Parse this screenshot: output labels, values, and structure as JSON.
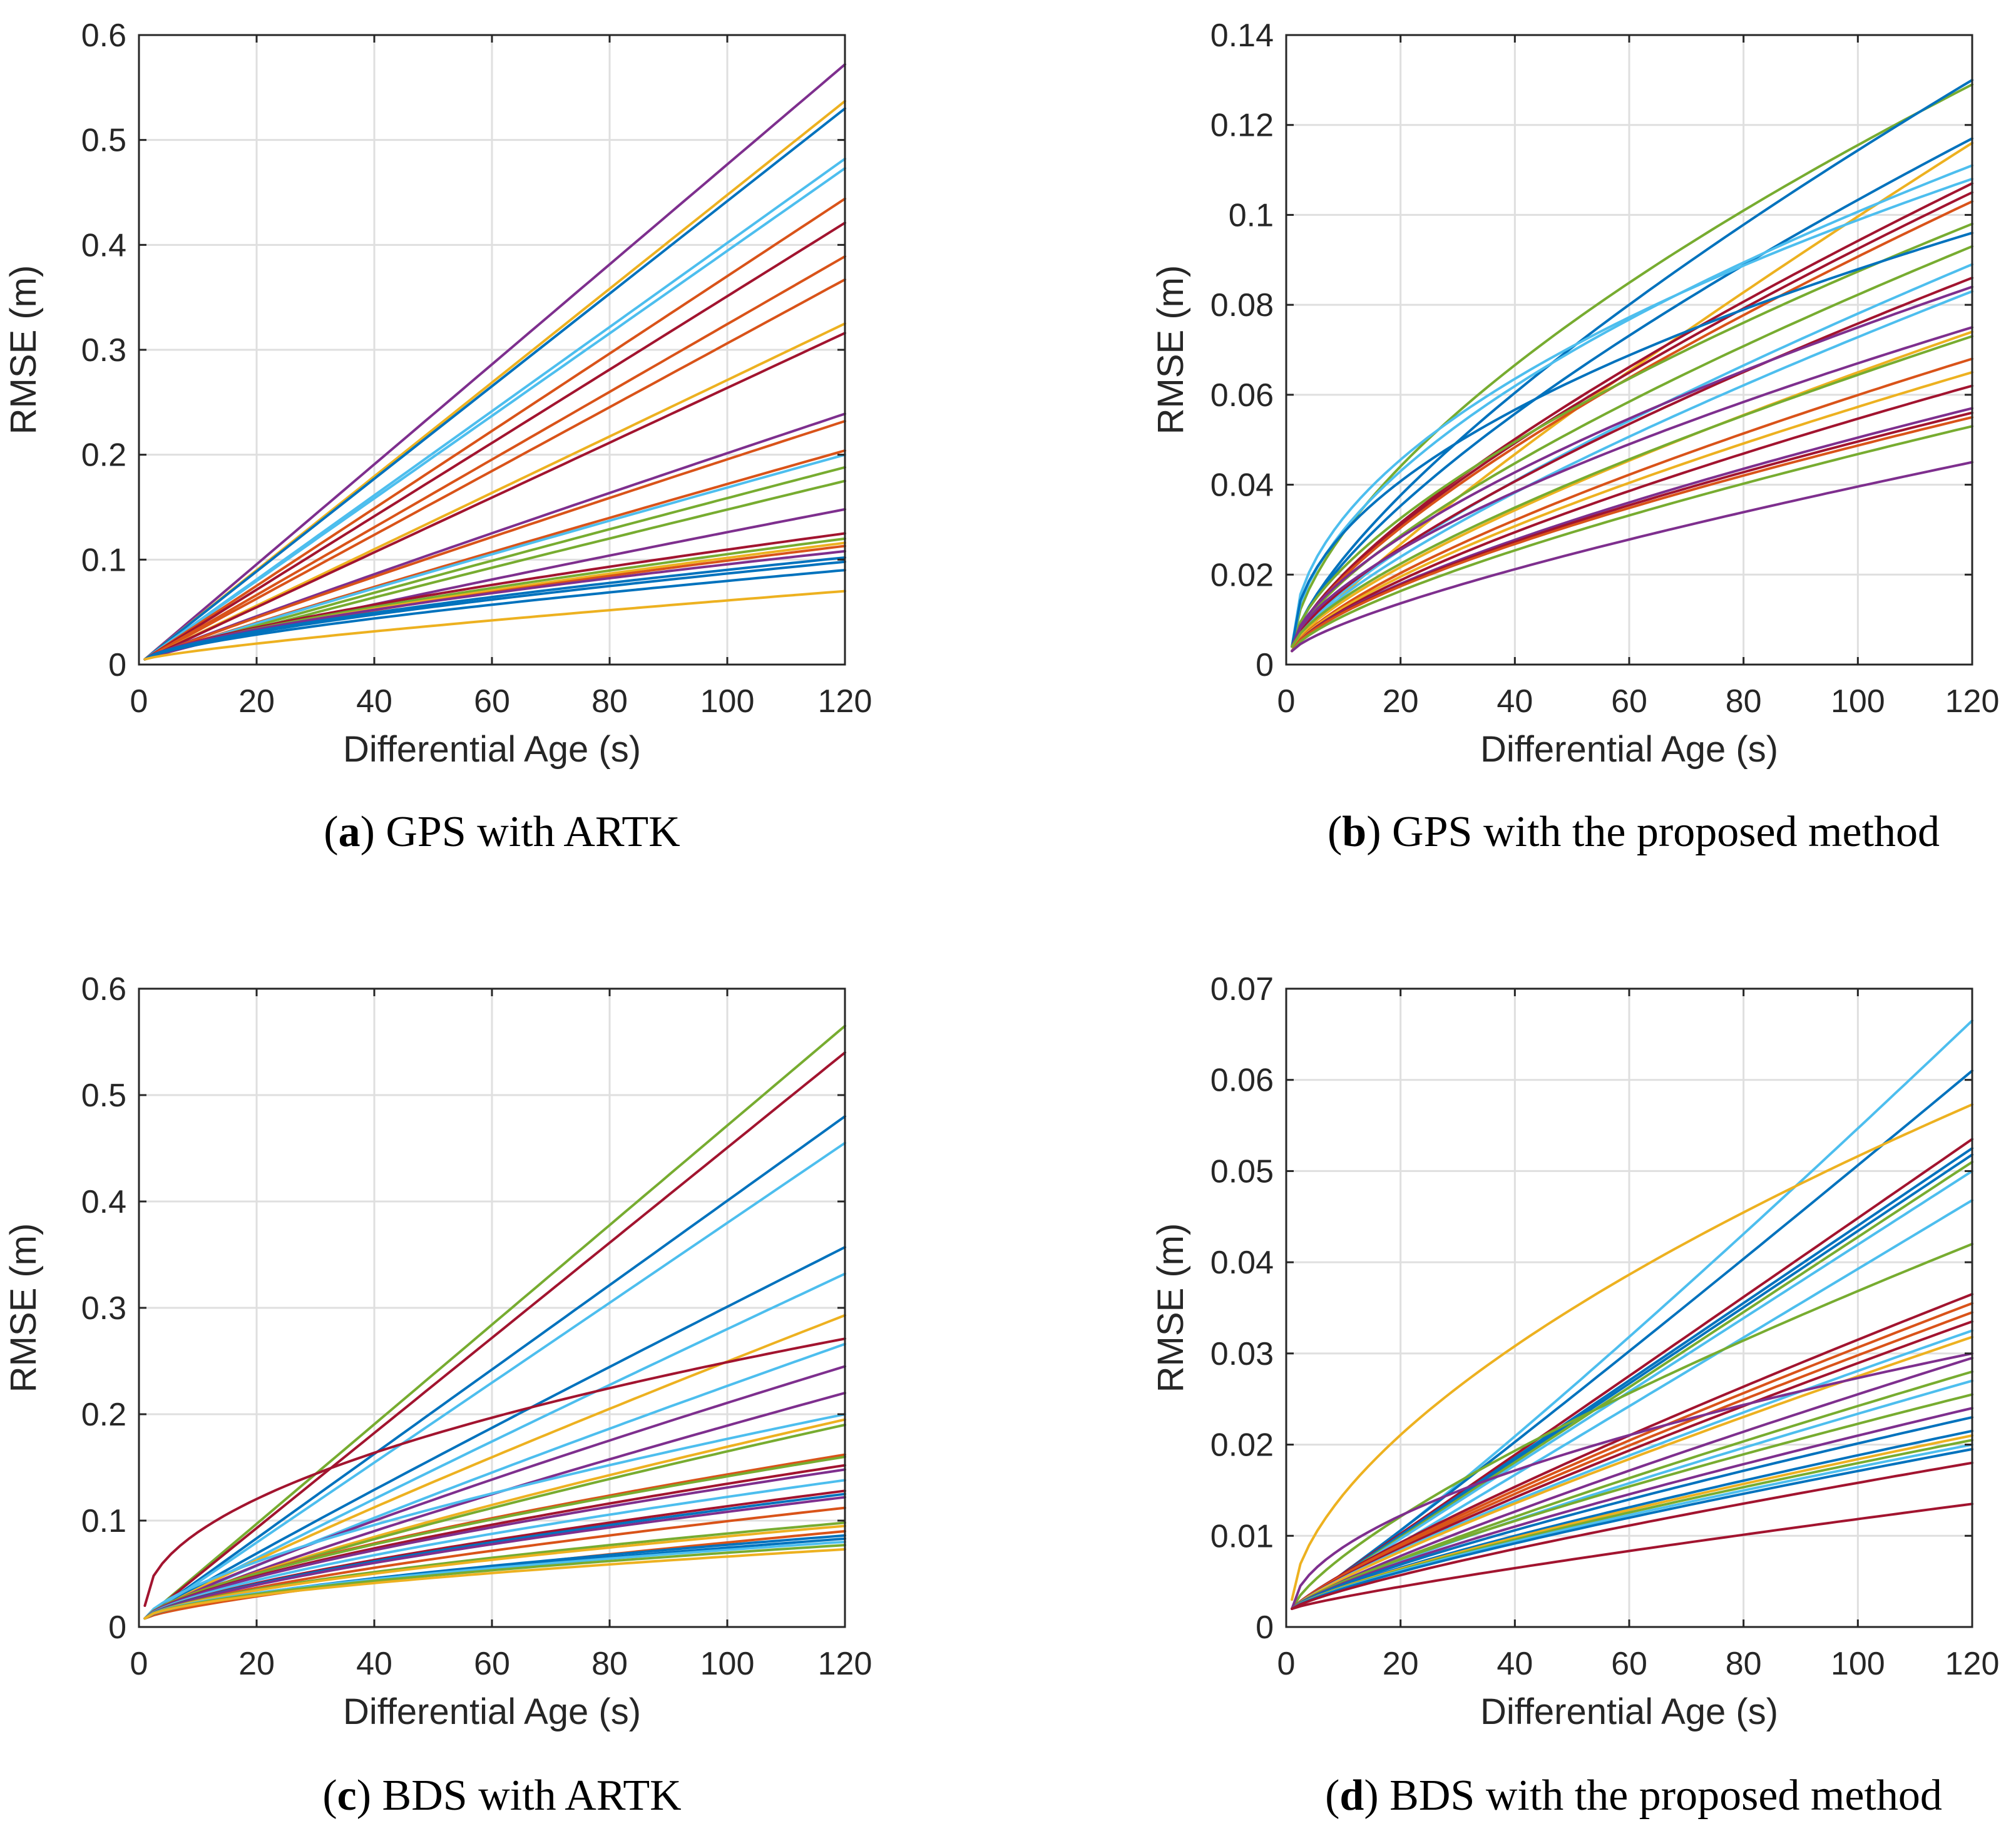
{
  "figure": {
    "series_colors": [
      "#0072BD",
      "#D95319",
      "#EDB120",
      "#7E2F8E",
      "#77AC30",
      "#4DBEEE",
      "#A2142F"
    ]
  },
  "chart_data": [
    {
      "id": "a",
      "type": "line",
      "caption_letter": "a",
      "caption_text": " GPS with ARTK",
      "xlabel": "Differential Age (s)",
      "ylabel": "RMSE (m)",
      "xlim": [
        0,
        120
      ],
      "ylim": [
        0,
        0.6
      ],
      "xticks": [
        0,
        20,
        40,
        60,
        80,
        100,
        120
      ],
      "yticks": [
        0,
        0.1,
        0.2,
        0.3,
        0.4,
        0.5,
        0.6
      ],
      "ytick_labels": [
        "0",
        "0.1",
        "0.2",
        "0.3",
        "0.4",
        "0.5",
        "0.6"
      ],
      "grid": true,
      "x_start": 1,
      "x_end": 120,
      "series": [
        {
          "color": "#7E2F8E",
          "start": 0.005,
          "end": 0.572,
          "shape": 1.0
        },
        {
          "color": "#EDB120",
          "start": 0.005,
          "end": 0.537,
          "shape": 1.0
        },
        {
          "color": "#0072BD",
          "start": 0.005,
          "end": 0.53,
          "shape": 1.0
        },
        {
          "color": "#4DBEEE",
          "start": 0.005,
          "end": 0.482,
          "shape": 1.0
        },
        {
          "color": "#4DBEEE",
          "start": 0.005,
          "end": 0.473,
          "shape": 1.0
        },
        {
          "color": "#D95319",
          "start": 0.005,
          "end": 0.444,
          "shape": 1.0
        },
        {
          "color": "#A2142F",
          "start": 0.005,
          "end": 0.421,
          "shape": 1.0
        },
        {
          "color": "#D95319",
          "start": 0.005,
          "end": 0.389,
          "shape": 1.0
        },
        {
          "color": "#D95319",
          "start": 0.005,
          "end": 0.367,
          "shape": 1.0
        },
        {
          "color": "#EDB120",
          "start": 0.005,
          "end": 0.325,
          "shape": 1.0
        },
        {
          "color": "#A2142F",
          "start": 0.005,
          "end": 0.316,
          "shape": 1.0
        },
        {
          "color": "#7E2F8E",
          "start": 0.005,
          "end": 0.239,
          "shape": 0.95
        },
        {
          "color": "#D95319",
          "start": 0.005,
          "end": 0.232,
          "shape": 0.95
        },
        {
          "color": "#D95319",
          "start": 0.005,
          "end": 0.204,
          "shape": 0.95
        },
        {
          "color": "#4DBEEE",
          "start": 0.005,
          "end": 0.2,
          "shape": 0.95
        },
        {
          "color": "#77AC30",
          "start": 0.005,
          "end": 0.188,
          "shape": 0.95
        },
        {
          "color": "#77AC30",
          "start": 0.005,
          "end": 0.175,
          "shape": 0.95
        },
        {
          "color": "#7E2F8E",
          "start": 0.005,
          "end": 0.148,
          "shape": 0.9
        },
        {
          "color": "#A2142F",
          "start": 0.005,
          "end": 0.125,
          "shape": 0.75
        },
        {
          "color": "#77AC30",
          "start": 0.005,
          "end": 0.12,
          "shape": 0.75
        },
        {
          "color": "#EDB120",
          "start": 0.005,
          "end": 0.116,
          "shape": 0.75
        },
        {
          "color": "#D95319",
          "start": 0.005,
          "end": 0.113,
          "shape": 0.75
        },
        {
          "color": "#7E2F8E",
          "start": 0.005,
          "end": 0.108,
          "shape": 0.7
        },
        {
          "color": "#0072BD",
          "start": 0.005,
          "end": 0.102,
          "shape": 0.7
        },
        {
          "color": "#0072BD",
          "start": 0.005,
          "end": 0.098,
          "shape": 0.7
        },
        {
          "color": "#0072BD",
          "start": 0.005,
          "end": 0.09,
          "shape": 0.7
        },
        {
          "color": "#EDB120",
          "start": 0.005,
          "end": 0.07,
          "shape": 0.8
        }
      ]
    },
    {
      "id": "b",
      "type": "line",
      "caption_letter": "b",
      "caption_text": " GPS with the proposed method",
      "xlabel": "Differential Age (s)",
      "ylabel": "RMSE (m)",
      "xlim": [
        0,
        120
      ],
      "ylim": [
        0,
        0.14
      ],
      "xticks": [
        0,
        20,
        40,
        60,
        80,
        100,
        120
      ],
      "yticks": [
        0,
        0.02,
        0.04,
        0.06,
        0.08,
        0.1,
        0.12,
        0.14
      ],
      "ytick_labels": [
        "0",
        "0.02",
        "0.04",
        "0.06",
        "0.08",
        "0.1",
        "0.12",
        "0.14"
      ],
      "grid": true,
      "x_start": 1,
      "x_end": 120,
      "series": [
        {
          "color": "#77AC30",
          "start": 0.004,
          "end": 0.129,
          "shape": 0.62
        },
        {
          "color": "#0072BD",
          "start": 0.004,
          "end": 0.13,
          "shape": 0.72
        },
        {
          "color": "#0072BD",
          "start": 0.004,
          "end": 0.117,
          "shape": 0.7
        },
        {
          "color": "#EDB120",
          "start": 0.003,
          "end": 0.116,
          "shape": 0.85
        },
        {
          "color": "#4DBEEE",
          "start": 0.004,
          "end": 0.111,
          "shape": 0.55
        },
        {
          "color": "#4DBEEE",
          "start": 0.004,
          "end": 0.108,
          "shape": 0.5
        },
        {
          "color": "#A2142F",
          "start": 0.004,
          "end": 0.107,
          "shape": 0.72
        },
        {
          "color": "#A2142F",
          "start": 0.004,
          "end": 0.105,
          "shape": 0.72
        },
        {
          "color": "#D95319",
          "start": 0.004,
          "end": 0.103,
          "shape": 0.72
        },
        {
          "color": "#77AC30",
          "start": 0.004,
          "end": 0.098,
          "shape": 0.65
        },
        {
          "color": "#0072BD",
          "start": 0.004,
          "end": 0.096,
          "shape": 0.5
        },
        {
          "color": "#77AC30",
          "start": 0.004,
          "end": 0.093,
          "shape": 0.7
        },
        {
          "color": "#4DBEEE",
          "start": 0.004,
          "end": 0.089,
          "shape": 0.75
        },
        {
          "color": "#A2142F",
          "start": 0.004,
          "end": 0.086,
          "shape": 0.72
        },
        {
          "color": "#7E2F8E",
          "start": 0.004,
          "end": 0.084,
          "shape": 0.65
        },
        {
          "color": "#4DBEEE",
          "start": 0.004,
          "end": 0.083,
          "shape": 0.75
        },
        {
          "color": "#7E2F8E",
          "start": 0.004,
          "end": 0.075,
          "shape": 0.65
        },
        {
          "color": "#EDB120",
          "start": 0.004,
          "end": 0.074,
          "shape": 0.75
        },
        {
          "color": "#77AC30",
          "start": 0.004,
          "end": 0.073,
          "shape": 0.72
        },
        {
          "color": "#D95319",
          "start": 0.003,
          "end": 0.068,
          "shape": 0.72
        },
        {
          "color": "#EDB120",
          "start": 0.003,
          "end": 0.065,
          "shape": 0.72
        },
        {
          "color": "#A2142F",
          "start": 0.003,
          "end": 0.062,
          "shape": 0.72
        },
        {
          "color": "#7E2F8E",
          "start": 0.003,
          "end": 0.057,
          "shape": 0.7
        },
        {
          "color": "#A2142F",
          "start": 0.003,
          "end": 0.056,
          "shape": 0.7
        },
        {
          "color": "#D95319",
          "start": 0.003,
          "end": 0.055,
          "shape": 0.7
        },
        {
          "color": "#77AC30",
          "start": 0.003,
          "end": 0.053,
          "shape": 0.72
        },
        {
          "color": "#7E2F8E",
          "start": 0.003,
          "end": 0.045,
          "shape": 0.75
        }
      ]
    },
    {
      "id": "c",
      "type": "line",
      "caption_letter": "c",
      "caption_text": " BDS with ARTK",
      "xlabel": "Differential Age (s)",
      "ylabel": "RMSE (m)",
      "xlim": [
        0,
        120
      ],
      "ylim": [
        0,
        0.6
      ],
      "xticks": [
        0,
        20,
        40,
        60,
        80,
        100,
        120
      ],
      "yticks": [
        0,
        0.1,
        0.2,
        0.3,
        0.4,
        0.5,
        0.6
      ],
      "ytick_labels": [
        "0",
        "0.1",
        "0.2",
        "0.3",
        "0.4",
        "0.5",
        "0.6"
      ],
      "grid": true,
      "x_start": 1,
      "x_end": 120,
      "series": [
        {
          "color": "#77AC30",
          "start": 0.008,
          "end": 0.565,
          "shape": 1.0
        },
        {
          "color": "#A2142F",
          "start": 0.008,
          "end": 0.54,
          "shape": 1.0
        },
        {
          "color": "#0072BD",
          "start": 0.008,
          "end": 0.48,
          "shape": 1.0
        },
        {
          "color": "#4DBEEE",
          "start": 0.008,
          "end": 0.455,
          "shape": 1.0
        },
        {
          "color": "#0072BD",
          "start": 0.008,
          "end": 0.357,
          "shape": 0.95
        },
        {
          "color": "#4DBEEE",
          "start": 0.008,
          "end": 0.332,
          "shape": 0.95
        },
        {
          "color": "#EDB120",
          "start": 0.008,
          "end": 0.293,
          "shape": 0.9
        },
        {
          "color": "#A2142F",
          "start": 0.02,
          "end": 0.271,
          "shape": 0.5
        },
        {
          "color": "#4DBEEE",
          "start": 0.008,
          "end": 0.266,
          "shape": 0.9
        },
        {
          "color": "#7E2F8E",
          "start": 0.008,
          "end": 0.245,
          "shape": 0.85
        },
        {
          "color": "#7E2F8E",
          "start": 0.008,
          "end": 0.22,
          "shape": 0.85
        },
        {
          "color": "#4DBEEE",
          "start": 0.008,
          "end": 0.2,
          "shape": 0.7
        },
        {
          "color": "#EDB120",
          "start": 0.008,
          "end": 0.195,
          "shape": 0.8
        },
        {
          "color": "#77AC30",
          "start": 0.008,
          "end": 0.19,
          "shape": 0.8
        },
        {
          "color": "#D95319",
          "start": 0.008,
          "end": 0.162,
          "shape": 0.7
        },
        {
          "color": "#77AC30",
          "start": 0.008,
          "end": 0.16,
          "shape": 0.7
        },
        {
          "color": "#A2142F",
          "start": 0.008,
          "end": 0.152,
          "shape": 0.7
        },
        {
          "color": "#7E2F8E",
          "start": 0.008,
          "end": 0.148,
          "shape": 0.7
        },
        {
          "color": "#4DBEEE",
          "start": 0.008,
          "end": 0.138,
          "shape": 0.7
        },
        {
          "color": "#A2142F",
          "start": 0.008,
          "end": 0.128,
          "shape": 0.7
        },
        {
          "color": "#0072BD",
          "start": 0.008,
          "end": 0.125,
          "shape": 0.7
        },
        {
          "color": "#7E2F8E",
          "start": 0.008,
          "end": 0.122,
          "shape": 0.7
        },
        {
          "color": "#D95319",
          "start": 0.008,
          "end": 0.112,
          "shape": 0.7
        },
        {
          "color": "#77AC30",
          "start": 0.008,
          "end": 0.098,
          "shape": 0.65
        },
        {
          "color": "#EDB120",
          "start": 0.008,
          "end": 0.095,
          "shape": 0.65
        },
        {
          "color": "#D95319",
          "start": 0.008,
          "end": 0.09,
          "shape": 0.75
        },
        {
          "color": "#0072BD",
          "start": 0.008,
          "end": 0.086,
          "shape": 0.65
        },
        {
          "color": "#0072BD",
          "start": 0.008,
          "end": 0.083,
          "shape": 0.65
        },
        {
          "color": "#4DBEEE",
          "start": 0.008,
          "end": 0.08,
          "shape": 0.6
        },
        {
          "color": "#77AC30",
          "start": 0.008,
          "end": 0.077,
          "shape": 0.6
        },
        {
          "color": "#EDB120",
          "start": 0.008,
          "end": 0.073,
          "shape": 0.6
        }
      ]
    },
    {
      "id": "d",
      "type": "line",
      "caption_letter": "d",
      "caption_text": " BDS with the proposed method",
      "xlabel": "Differential Age (s)",
      "ylabel": "RMSE (m)",
      "xlim": [
        0,
        120
      ],
      "ylim": [
        0,
        0.07
      ],
      "xticks": [
        0,
        20,
        40,
        60,
        80,
        100,
        120
      ],
      "yticks": [
        0,
        0.01,
        0.02,
        0.03,
        0.04,
        0.05,
        0.06,
        0.07
      ],
      "ytick_labels": [
        "0",
        "0.01",
        "0.02",
        "0.03",
        "0.04",
        "0.05",
        "0.06",
        "0.07"
      ],
      "grid": true,
      "x_start": 1,
      "x_end": 120,
      "series": [
        {
          "color": "#4DBEEE",
          "start": 0.002,
          "end": 0.0665,
          "shape": 1.1
        },
        {
          "color": "#0072BD",
          "start": 0.002,
          "end": 0.061,
          "shape": 1.05
        },
        {
          "color": "#EDB120",
          "start": 0.003,
          "end": 0.0573,
          "shape": 0.6
        },
        {
          "color": "#A2142F",
          "start": 0.002,
          "end": 0.0535,
          "shape": 1.0
        },
        {
          "color": "#0072BD",
          "start": 0.002,
          "end": 0.0525,
          "shape": 1.0
        },
        {
          "color": "#0072BD",
          "start": 0.002,
          "end": 0.0518,
          "shape": 1.0
        },
        {
          "color": "#77AC30",
          "start": 0.002,
          "end": 0.051,
          "shape": 1.0
        },
        {
          "color": "#4DBEEE",
          "start": 0.002,
          "end": 0.05,
          "shape": 1.0
        },
        {
          "color": "#4DBEEE",
          "start": 0.002,
          "end": 0.0468,
          "shape": 1.0
        },
        {
          "color": "#77AC30",
          "start": 0.002,
          "end": 0.042,
          "shape": 0.75
        },
        {
          "color": "#A2142F",
          "start": 0.002,
          "end": 0.0365,
          "shape": 0.85
        },
        {
          "color": "#D95319",
          "start": 0.002,
          "end": 0.0355,
          "shape": 0.85
        },
        {
          "color": "#D95319",
          "start": 0.002,
          "end": 0.0345,
          "shape": 0.85
        },
        {
          "color": "#A2142F",
          "start": 0.002,
          "end": 0.0335,
          "shape": 0.85
        },
        {
          "color": "#4DBEEE",
          "start": 0.002,
          "end": 0.0325,
          "shape": 0.85
        },
        {
          "color": "#EDB120",
          "start": 0.002,
          "end": 0.0318,
          "shape": 0.85
        },
        {
          "color": "#7E2F8E",
          "start": 0.002,
          "end": 0.03,
          "shape": 0.55
        },
        {
          "color": "#7E2F8E",
          "start": 0.002,
          "end": 0.0295,
          "shape": 0.85
        },
        {
          "color": "#77AC30",
          "start": 0.002,
          "end": 0.028,
          "shape": 0.85
        },
        {
          "color": "#4DBEEE",
          "start": 0.002,
          "end": 0.027,
          "shape": 0.85
        },
        {
          "color": "#77AC30",
          "start": 0.002,
          "end": 0.0255,
          "shape": 0.8
        },
        {
          "color": "#7E2F8E",
          "start": 0.002,
          "end": 0.024,
          "shape": 0.8
        },
        {
          "color": "#0072BD",
          "start": 0.002,
          "end": 0.023,
          "shape": 0.8
        },
        {
          "color": "#0072BD",
          "start": 0.002,
          "end": 0.0215,
          "shape": 0.8
        },
        {
          "color": "#EDB120",
          "start": 0.002,
          "end": 0.021,
          "shape": 0.8
        },
        {
          "color": "#77AC30",
          "start": 0.002,
          "end": 0.0205,
          "shape": 0.8
        },
        {
          "color": "#4DBEEE",
          "start": 0.002,
          "end": 0.02,
          "shape": 0.8
        },
        {
          "color": "#0072BD",
          "start": 0.002,
          "end": 0.0195,
          "shape": 0.8
        },
        {
          "color": "#A2142F",
          "start": 0.002,
          "end": 0.018,
          "shape": 0.8
        },
        {
          "color": "#A2142F",
          "start": 0.002,
          "end": 0.0135,
          "shape": 0.85
        }
      ]
    }
  ]
}
